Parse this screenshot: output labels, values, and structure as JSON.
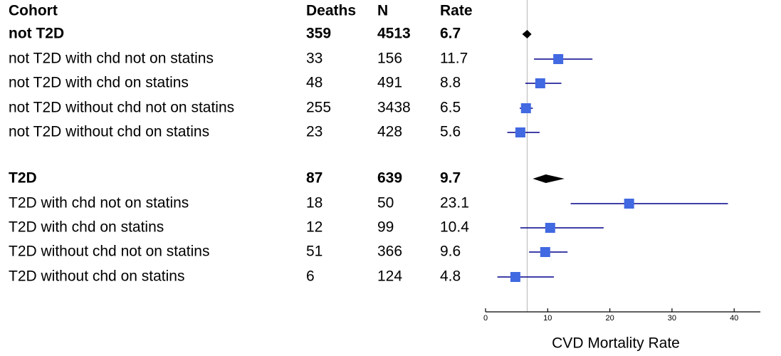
{
  "chart_data": {
    "type": "forest",
    "columns": [
      "Cohort",
      "Deaths",
      "N",
      "Rate"
    ],
    "xlabel": "CVD Mortality Rate",
    "xlim": [
      0,
      46
    ],
    "xticks": [
      0,
      10,
      20,
      30,
      40
    ],
    "reference_line": 6.7,
    "colors": {
      "marker": "#4169E1",
      "ci_line": "#00008B",
      "summary": "#000000",
      "reference": "#bfbfbf"
    },
    "rows": [
      {
        "label": "not T2D",
        "deaths": "359",
        "n": "4513",
        "rate": "6.7",
        "summary": true,
        "value": 6.7,
        "lower": 5.9,
        "upper": 7.4
      },
      {
        "label": "not T2D with chd not on statins",
        "deaths": "33",
        "n": "156",
        "rate": "11.7",
        "summary": false,
        "value": 11.7,
        "lower": 7.8,
        "upper": 17.2
      },
      {
        "label": "not T2D with chd on statins",
        "deaths": "48",
        "n": "491",
        "rate": "8.8",
        "summary": false,
        "value": 8.8,
        "lower": 6.4,
        "upper": 12.2
      },
      {
        "label": "not T2D without chd not on statins",
        "deaths": "255",
        "n": "3438",
        "rate": "6.5",
        "summary": false,
        "value": 6.5,
        "lower": 5.5,
        "upper": 7.6
      },
      {
        "label": "not T2D without chd on statins",
        "deaths": "23",
        "n": "428",
        "rate": "5.6",
        "summary": false,
        "value": 5.6,
        "lower": 3.5,
        "upper": 8.7
      },
      {
        "label": "T2D",
        "deaths": "87",
        "n": "639",
        "rate": "9.7",
        "summary": true,
        "value": 9.7,
        "lower": 7.6,
        "upper": 12.7
      },
      {
        "label": "T2D with chd not on statins",
        "deaths": "18",
        "n": "50",
        "rate": "23.1",
        "summary": false,
        "value": 23.1,
        "lower": 13.7,
        "upper": 39.0
      },
      {
        "label": "T2D with chd on statins",
        "deaths": "12",
        "n": "99",
        "rate": "10.4",
        "summary": false,
        "value": 10.4,
        "lower": 5.6,
        "upper": 19.0
      },
      {
        "label": "T2D without chd not on statins",
        "deaths": "51",
        "n": "366",
        "rate": "9.6",
        "summary": false,
        "value": 9.6,
        "lower": 7.0,
        "upper": 13.2
      },
      {
        "label": "T2D without chd on statins",
        "deaths": "6",
        "n": "124",
        "rate": "4.8",
        "summary": false,
        "value": 4.8,
        "lower": 1.9,
        "upper": 11.0
      }
    ]
  }
}
